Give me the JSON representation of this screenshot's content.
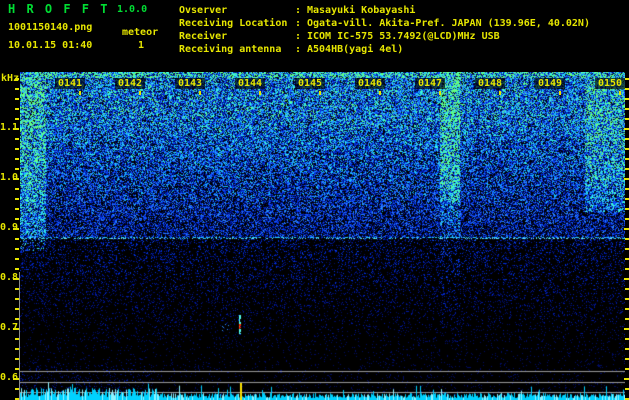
{
  "header": {
    "app_title": "H R O F F T",
    "version": "1.0.0",
    "filename": "1001150140.png",
    "mode": "meteor",
    "datetime": "10.01.15 01:40",
    "count": "1",
    "separator": ":",
    "info": {
      "rows": [
        {
          "label": "Ovserver",
          "value": "Masayuki Kobayashi"
        },
        {
          "label": "Receiving Location",
          "value": "Ogata-vill. Akita-Pref. JAPAN (139.96E, 40.02N)"
        },
        {
          "label": "Receiver",
          "value": "ICOM IC-575 53.7492(@LCD)MHz USB"
        },
        {
          "label": "Receiving antenna",
          "value": "A504HB(yagi 4el)"
        }
      ]
    }
  },
  "spectrogram": {
    "freq_unit": "kHz",
    "freq_labels": [
      "1.1",
      "1.0",
      "0.9",
      "0.8",
      "0.7",
      "0.6"
    ],
    "time_labels": [
      "0141",
      "0142",
      "0143",
      "0144",
      "0145",
      "0146",
      "0147",
      "0148",
      "0149",
      "0150"
    ],
    "colors": {
      "background": "#000000",
      "text_yellow": "#e6e600",
      "title_green": "#00dd33",
      "grid_gray": "#9a9a9a",
      "carrier_line": "#2bd4ff",
      "carrier_bright": "#7af0ff",
      "meteor_red": "#ff2200",
      "meteor_orange": "#ff7722",
      "meteor_cyan": "#55ffee",
      "level_wave": "#00d2ff",
      "level_wave_bright": "#8ff4ff",
      "marker_yellow": "#ffe400",
      "palette": [
        "#000d66",
        "#001aa8",
        "#0030e0",
        "#1555ff",
        "#2e8aff",
        "#18c8ff",
        "#3dffd8",
        "#66ff7a"
      ]
    }
  }
}
